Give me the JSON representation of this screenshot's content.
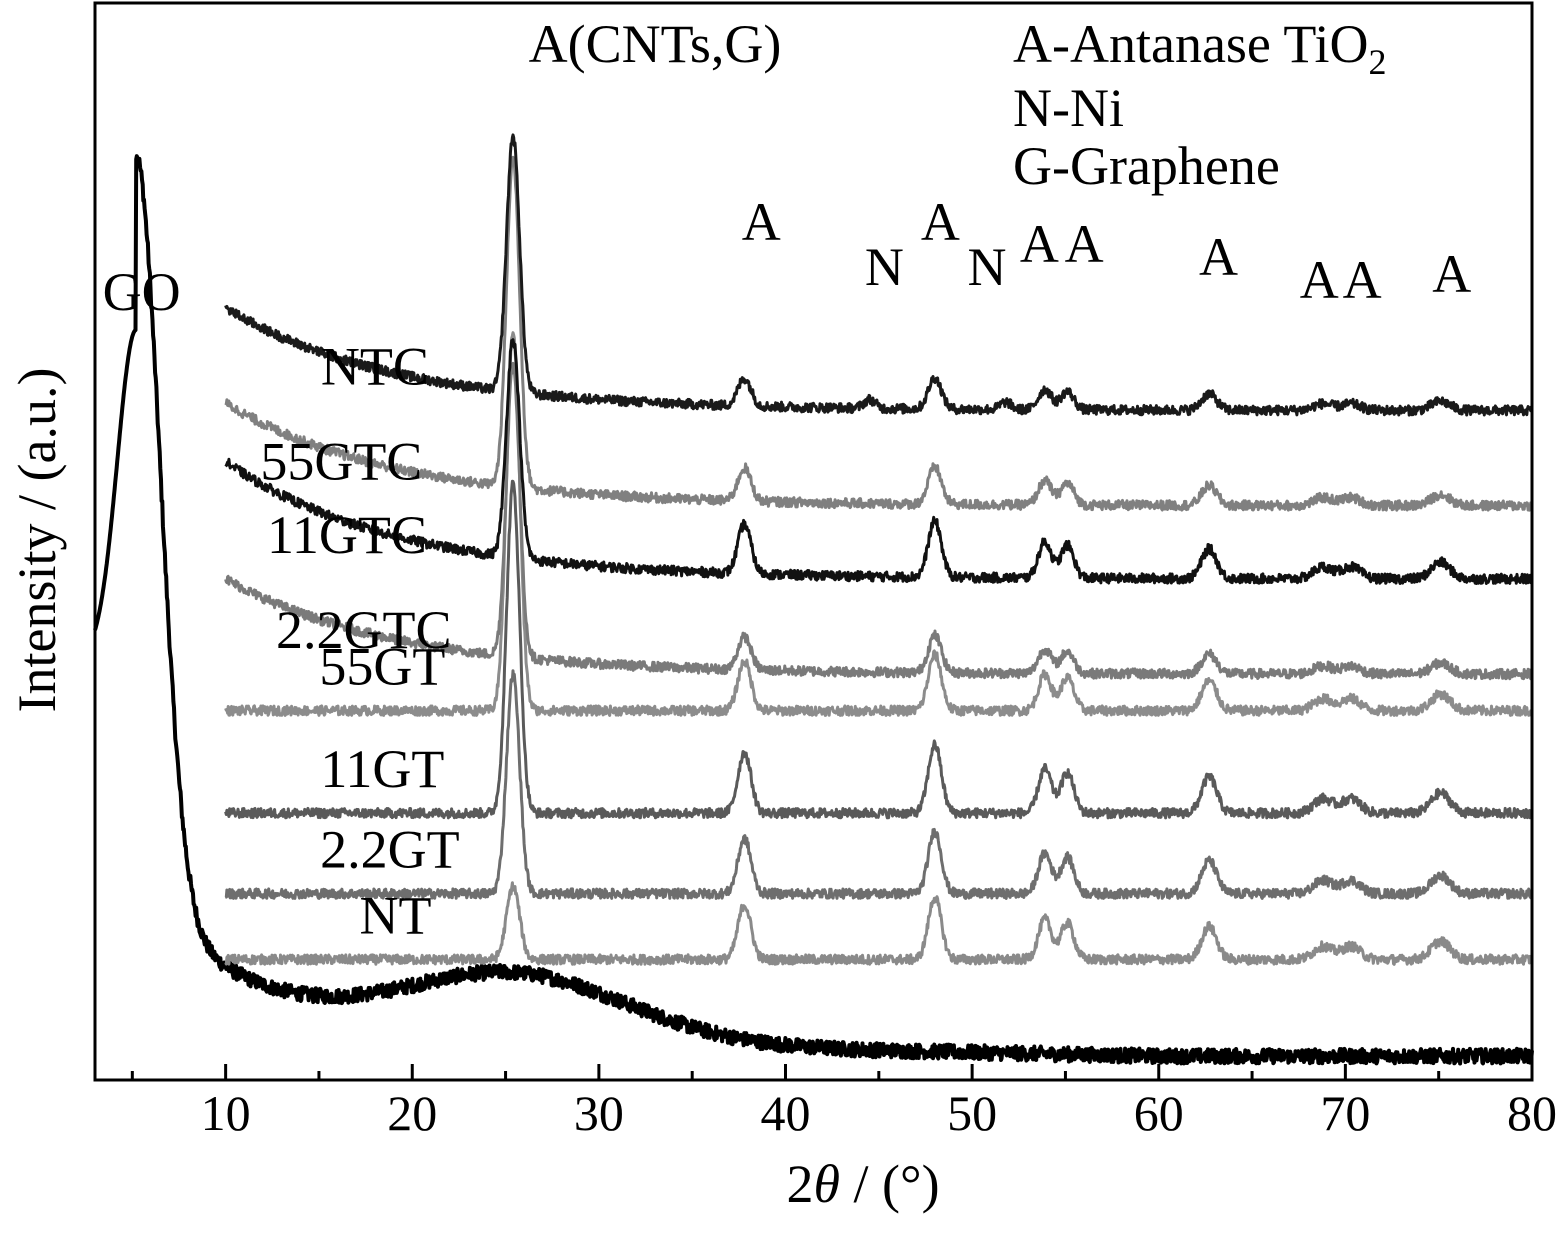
{
  "chart_data": {
    "type": "line",
    "xlabel": {
      "prefix": "2",
      "theta": "θ",
      "suffix": " / (°)"
    },
    "ylabel": "Intensity / (a.u.)",
    "xlim": [
      3,
      80
    ],
    "x_ticks": [
      10,
      20,
      30,
      40,
      50,
      60,
      70,
      80
    ],
    "x_minor_ticks": [
      5,
      15,
      25,
      35,
      45,
      55,
      65,
      75
    ],
    "grid": false,
    "legend": {
      "placement": "top-right",
      "entries": [
        {
          "main": "A-Antanase TiO",
          "sub": "2"
        },
        {
          "main": "N-Ni",
          "sub": ""
        },
        {
          "main": "G-Graphene",
          "sub": ""
        }
      ]
    },
    "top_peak_label": "A(CNTs,G)",
    "peak_labels": [
      {
        "text": "A",
        "x": 38.7
      },
      {
        "text": "N",
        "x": 45.3
      },
      {
        "text": "A",
        "x": 48.3
      },
      {
        "text": "N",
        "x": 50.8
      },
      {
        "text": "A",
        "x": 53.6
      },
      {
        "text": "A",
        "x": 56.0
      },
      {
        "text": "A",
        "x": 63.2
      },
      {
        "text": "A",
        "x": 68.6
      },
      {
        "text": "A",
        "x": 70.9
      },
      {
        "text": "A",
        "x": 75.7
      }
    ],
    "series": [
      {
        "name": "GO",
        "color": "#000000",
        "x_start": 3,
        "baseline": 0.0,
        "kind": "go",
        "label_x": 5.5
      },
      {
        "name": "NT",
        "color": "#8a8a8a",
        "x_start": 10,
        "baseline": 0.14,
        "graphene": 0.1,
        "tio2_scale": 1.0,
        "ni": false,
        "decay": 0.0,
        "label_x": 19.1
      },
      {
        "name": "2.2GT",
        "color": "#6e6e6e",
        "x_start": 10,
        "baseline": 0.23,
        "graphene": 0.3,
        "tio2_scale": 1.0,
        "ni": false,
        "decay": 0.0,
        "label_x": 18.8
      },
      {
        "name": "11GT",
        "color": "#5a5a5a",
        "x_start": 10,
        "baseline": 0.34,
        "graphene": 0.45,
        "tio2_scale": 1.1,
        "ni": false,
        "decay": 0.0,
        "label_x": 18.4
      },
      {
        "name": "55GT",
        "color": "#8c8c8c",
        "x_start": 10,
        "baseline": 0.48,
        "graphene": 0.52,
        "tio2_scale": 0.9,
        "ni": false,
        "decay": 0.0,
        "label_x": 18.4
      },
      {
        "name": "2.2GTC",
        "color": "#7a7a7a",
        "x_start": 10,
        "baseline": 0.53,
        "graphene": 0.4,
        "tio2_scale": 0.6,
        "ni": false,
        "decay": 0.13,
        "label_x": 17.4
      },
      {
        "name": "11GTC",
        "color": "#111111",
        "x_start": 10,
        "baseline": 0.66,
        "graphene": 0.3,
        "tio2_scale": 0.9,
        "ni": false,
        "decay": 0.16,
        "label_x": 16.5
      },
      {
        "name": "55GTC",
        "color": "#808080",
        "x_start": 10,
        "baseline": 0.76,
        "graphene": 0.45,
        "tio2_scale": 0.6,
        "ni": false,
        "decay": 0.14,
        "label_x": 16.2
      },
      {
        "name": "NTC",
        "color": "#1a1a1a",
        "x_start": 10,
        "baseline": 0.89,
        "graphene": 0.35,
        "tio2_scale": 0.5,
        "ni": true,
        "decay": 0.14,
        "label_x": 18.0
      }
    ]
  }
}
